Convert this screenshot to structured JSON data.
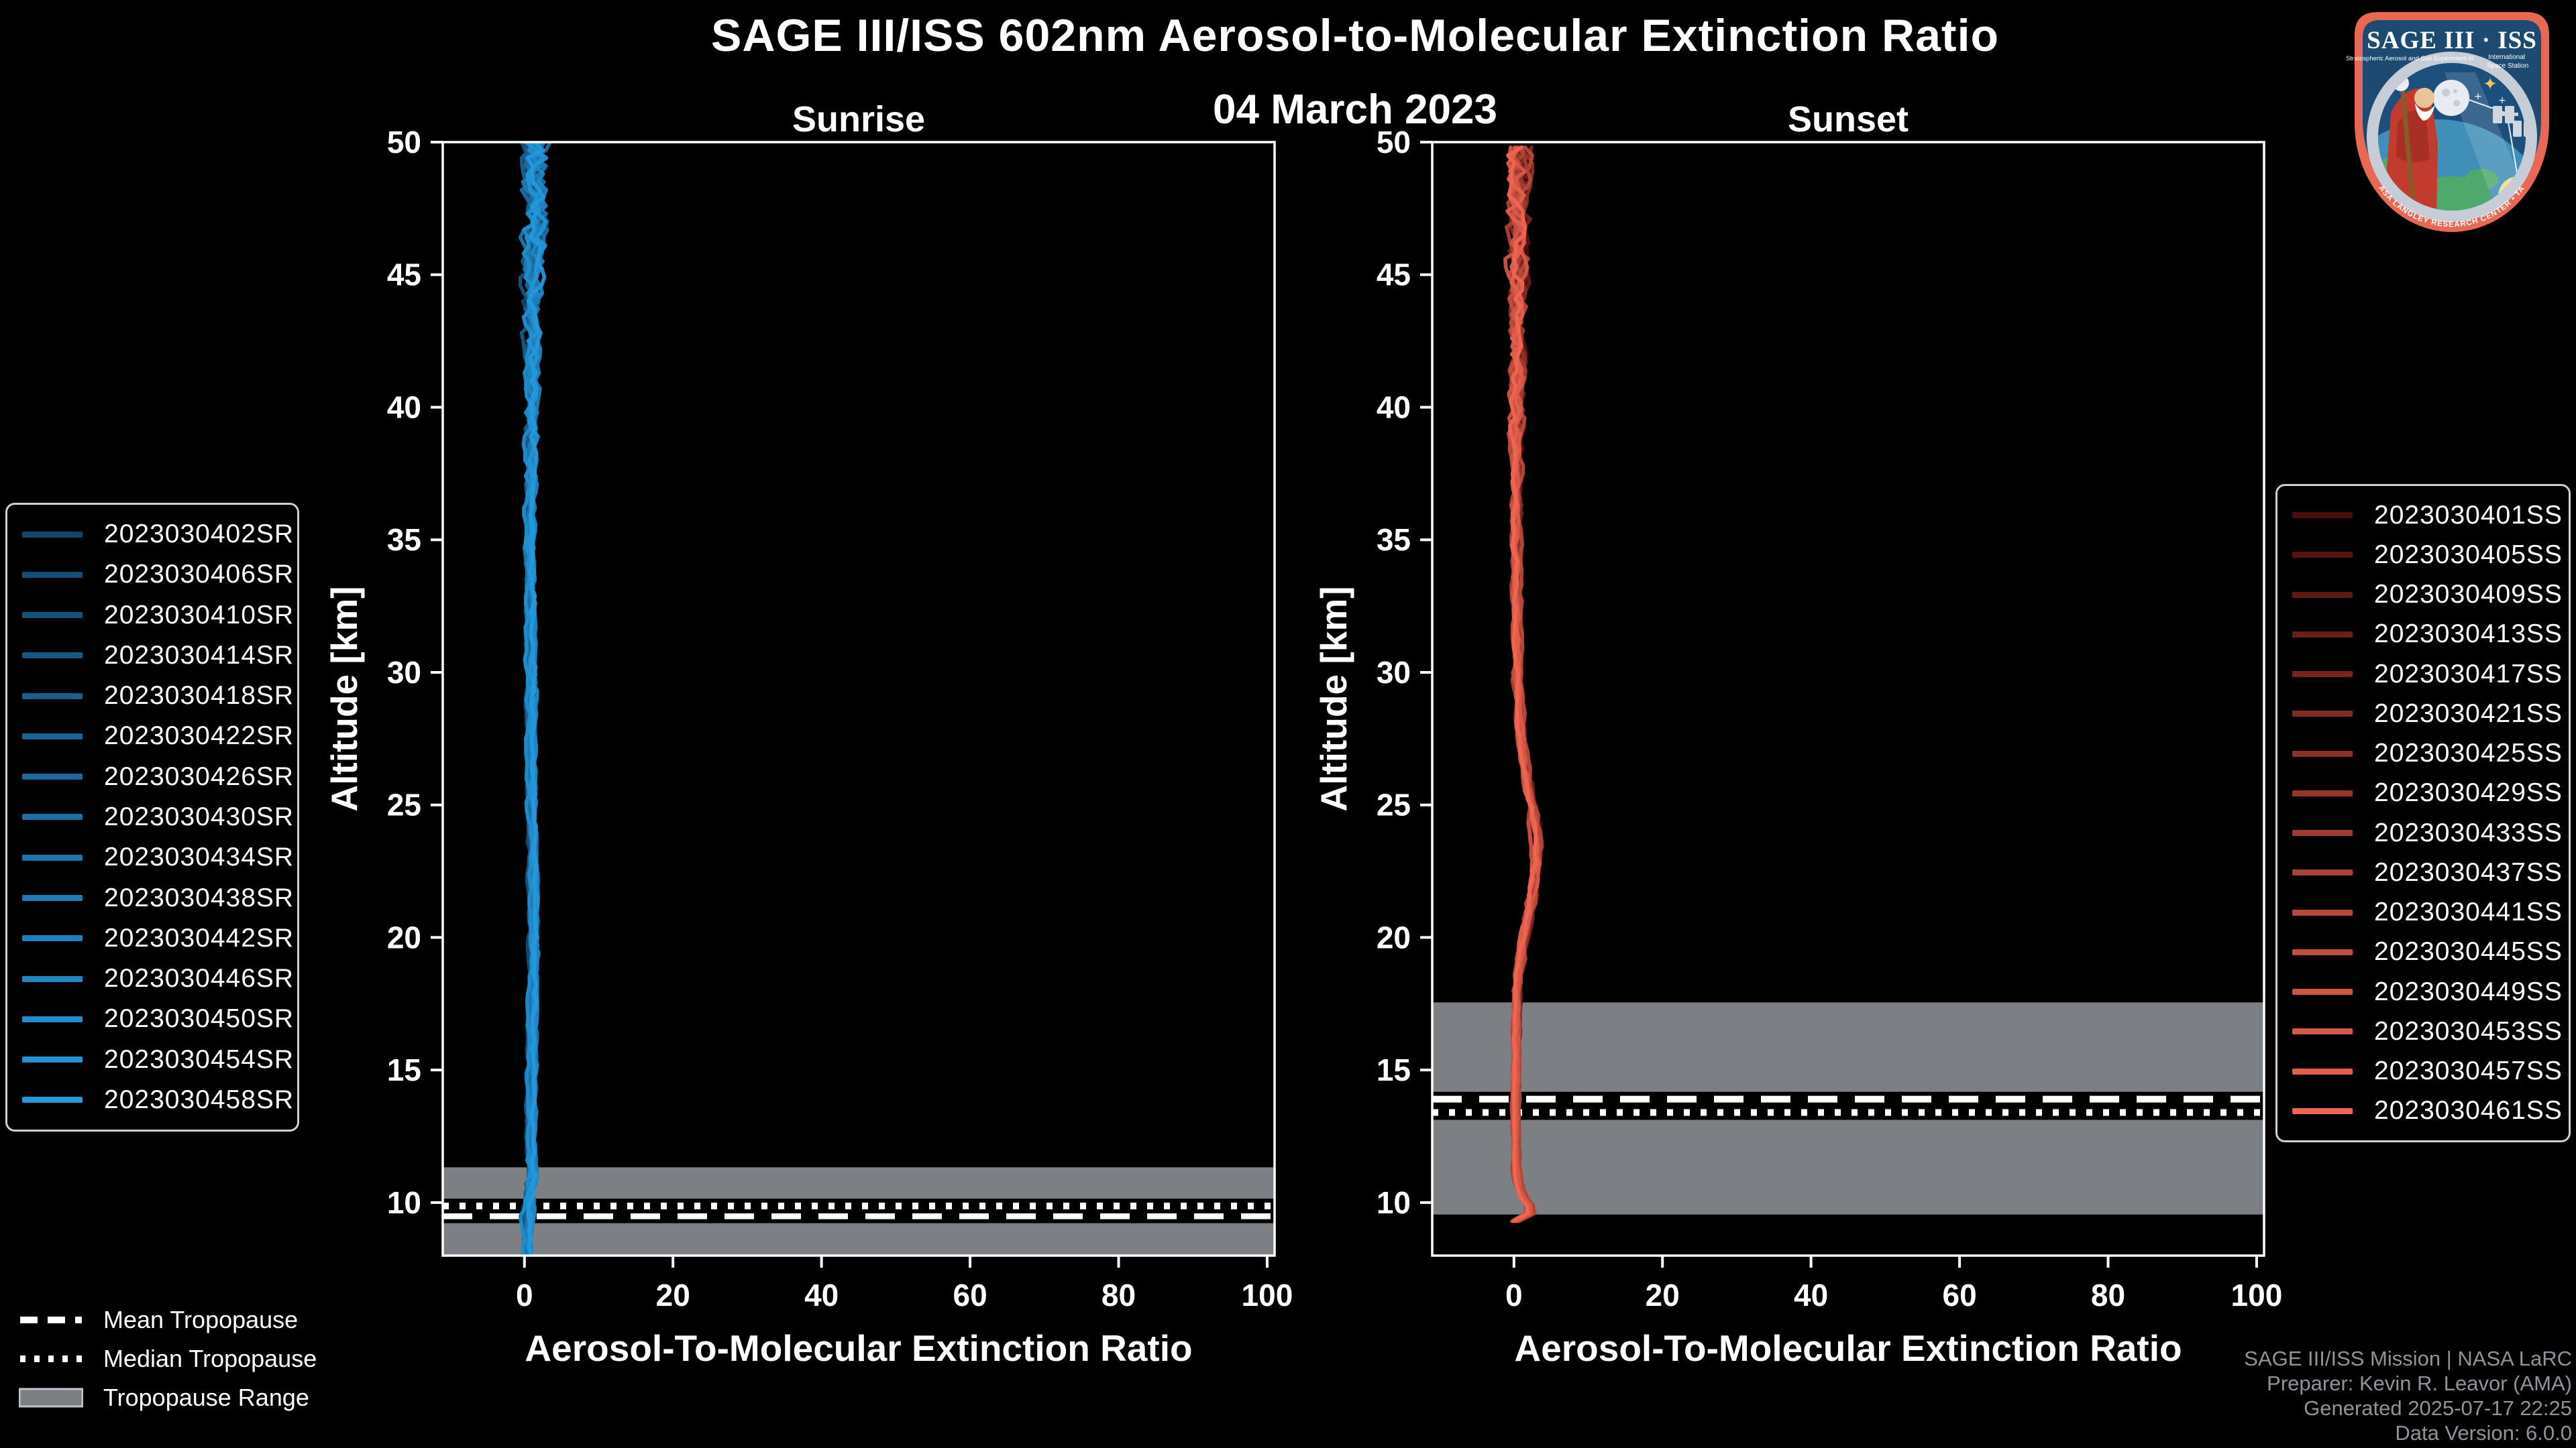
{
  "header": {
    "title": "SAGE III/ISS 602nm Aerosol-to-Molecular Extinction Ratio",
    "date": "04 March 2023"
  },
  "chart_data": [
    {
      "type": "line",
      "title": "Sunrise",
      "xlabel": "Aerosol-To-Molecular Extinction Ratio",
      "ylabel": "Altitude [km]",
      "xlim": [
        -11,
        101
      ],
      "ylim": [
        8,
        50
      ],
      "xticks": [
        0,
        20,
        40,
        60,
        80,
        100
      ],
      "yticks": [
        10,
        15,
        20,
        25,
        30,
        35,
        40,
        45,
        50
      ],
      "grid": false,
      "legend_position": "outside-left",
      "series_names": [
        "2023030402SR",
        "2023030406SR",
        "2023030410SR",
        "2023030414SR",
        "2023030418SR",
        "2023030422SR",
        "2023030426SR",
        "2023030430SR",
        "2023030434SR",
        "2023030438SR",
        "2023030442SR",
        "2023030446SR",
        "2023030450SR",
        "2023030454SR",
        "2023030458SR"
      ],
      "color_ramp": [
        "#15466d",
        "#2399dc"
      ],
      "base_profile": {
        "altitude": [
          8.0,
          9.0,
          10.0,
          11.0,
          12.0,
          14.0,
          16.0,
          18.0,
          20.0,
          22.0,
          24.0,
          26.0,
          28.0,
          30.0,
          32.0,
          34.0,
          36.0,
          38.0,
          40.0,
          42.0,
          44.0,
          46.0,
          48.0,
          50.0
        ],
        "ratio": [
          0.3,
          0.4,
          0.6,
          1.0,
          0.8,
          0.9,
          1.0,
          1.1,
          1.2,
          1.1,
          1.0,
          0.9,
          0.9,
          0.8,
          0.7,
          0.6,
          0.7,
          0.8,
          0.9,
          1.0,
          1.1,
          1.2,
          1.3,
          1.5
        ],
        "noise": [
          0.5,
          0.7,
          0.9,
          0.8,
          0.5,
          0.45,
          0.45,
          0.5,
          0.5,
          0.5,
          0.5,
          0.5,
          0.55,
          0.6,
          0.6,
          0.65,
          0.7,
          0.9,
          1.1,
          1.4,
          1.8,
          2.2,
          2.4,
          2.6
        ]
      },
      "tropopause": {
        "mean": 9.5,
        "median": 9.87,
        "range": [
          8.0,
          11.33
        ]
      }
    },
    {
      "type": "line",
      "title": "Sunset",
      "xlabel": "Aerosol-To-Molecular Extinction Ratio",
      "ylabel": "Altitude [km]",
      "xlim": [
        -11,
        101
      ],
      "ylim": [
        8,
        50
      ],
      "xticks": [
        0,
        20,
        40,
        60,
        80,
        100
      ],
      "yticks": [
        10,
        15,
        20,
        25,
        30,
        35,
        40,
        45,
        50
      ],
      "grid": false,
      "legend_position": "outside-right",
      "series_names": [
        "2023030401SS",
        "2023030405SS",
        "2023030409SS",
        "2023030413SS",
        "2023030417SS",
        "2023030421SS",
        "2023030425SS",
        "2023030429SS",
        "2023030433SS",
        "2023030437SS",
        "2023030441SS",
        "2023030445SS",
        "2023030449SS",
        "2023030453SS",
        "2023030457SS",
        "2023030461SS"
      ],
      "color_ramp": [
        "#4a0e0c",
        "#ee6551"
      ],
      "base_profile": {
        "altitude": [
          9.3,
          9.45,
          9.6,
          9.8,
          10.1,
          10.5,
          11.0,
          12.0,
          13.0,
          14.0,
          15.0,
          16.0,
          17.0,
          18.0,
          19.0,
          20.0,
          21.0,
          22.0,
          23.0,
          24.0,
          25.0,
          26.0,
          28.0,
          30.0,
          32.0,
          34.0,
          36.0,
          38.0,
          40.0,
          42.0,
          44.0,
          46.0,
          48.0,
          50.0
        ],
        "ratio": [
          0.2,
          1.2,
          3.8,
          2.6,
          0.6,
          0.3,
          0.2,
          0.2,
          0.2,
          0.2,
          0.25,
          0.3,
          0.3,
          0.4,
          0.8,
          1.4,
          2.2,
          2.8,
          3.1,
          2.9,
          2.2,
          1.4,
          0.7,
          0.4,
          0.3,
          0.3,
          0.3,
          0.3,
          0.3,
          0.4,
          0.4,
          0.5,
          0.6,
          0.7
        ],
        "noise": [
          0.15,
          0.2,
          0.3,
          0.3,
          0.25,
          0.2,
          0.2,
          0.2,
          0.2,
          0.25,
          0.25,
          0.3,
          0.3,
          0.35,
          0.4,
          0.5,
          0.6,
          0.7,
          0.7,
          0.7,
          0.6,
          0.5,
          0.45,
          0.5,
          0.5,
          0.55,
          0.6,
          0.8,
          1.0,
          1.3,
          1.6,
          1.9,
          2.1,
          2.3
        ]
      },
      "tropopause": {
        "mean": 13.9,
        "median": 13.4,
        "range": [
          9.55,
          17.55
        ]
      }
    }
  ],
  "tropopause_legend": [
    {
      "style": "dashed",
      "label": "Mean Tropopause"
    },
    {
      "style": "dotted",
      "label": "Median Tropopause"
    },
    {
      "style": "band",
      "label": "Tropopause Range"
    }
  ],
  "credits": {
    "lines": [
      "SAGE III/ISS Mission | NASA LaRC",
      "Preparer: Kevin R. Leavor (AMA)",
      "Generated 2025-07-17 22:25",
      "Data Version: 6.0.0"
    ]
  },
  "logo": {
    "title": "SAGE III · ISS",
    "left_sub": "Stratospheric Aerosol and Gas Experiment III",
    "right_sub_1": "International",
    "right_sub_2": "Space Station",
    "ring_text": "BALL • NASA LANGLEY RESEARCH CENTER • TAS-I • ESA"
  },
  "colors": {
    "background": "#000000",
    "axis": "#ffffff",
    "tropopause_band": "#7c8085",
    "tropopause_line": "#ffffff",
    "credits_text": "#8d949a",
    "legend_border": "#cfcfcf",
    "logo_border": "#e76853",
    "logo_field": "#1c4a71"
  }
}
